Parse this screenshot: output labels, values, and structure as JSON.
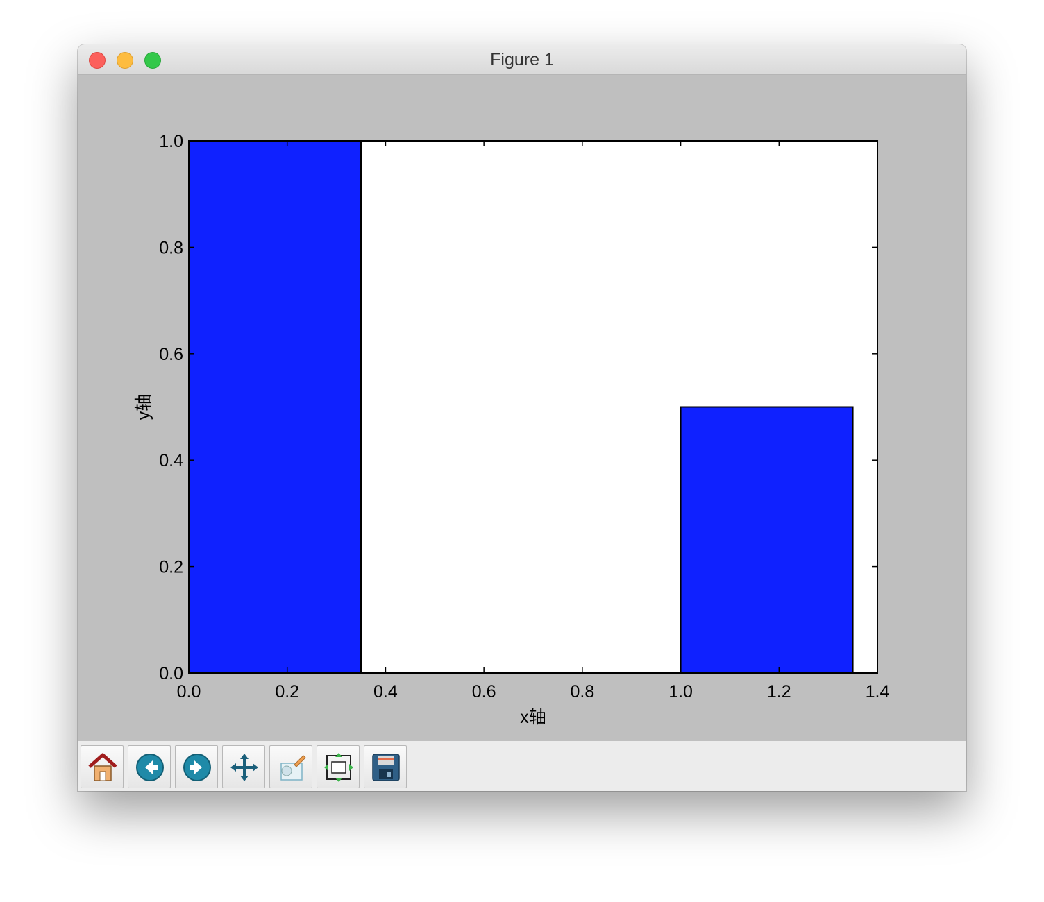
{
  "window": {
    "title": "Figure 1"
  },
  "toolbar": {
    "buttons": [
      {
        "name": "home-button",
        "icon": "home-icon"
      },
      {
        "name": "back-button",
        "icon": "back-arrow-icon"
      },
      {
        "name": "forward-button",
        "icon": "forward-arrow-icon"
      },
      {
        "name": "pan-button",
        "icon": "move-icon"
      },
      {
        "name": "zoom-button",
        "icon": "zoom-rect-icon"
      },
      {
        "name": "subplots-button",
        "icon": "subplots-icon"
      },
      {
        "name": "save-button",
        "icon": "floppy-disk-icon"
      }
    ]
  },
  "chart_data": {
    "type": "bar",
    "bars": [
      {
        "x": 0.0,
        "width": 0.35,
        "value": 1.0
      },
      {
        "x": 1.0,
        "width": 0.35,
        "value": 0.5
      }
    ],
    "color": "#0f21ff",
    "xlabel": "x轴",
    "ylabel": "y轴",
    "xlim": [
      0.0,
      1.4
    ],
    "ylim": [
      0.0,
      1.0
    ],
    "xticks": [
      "0.0",
      "0.2",
      "0.4",
      "0.6",
      "0.8",
      "1.0",
      "1.2",
      "1.4"
    ],
    "yticks": [
      "0.0",
      "0.2",
      "0.4",
      "0.6",
      "0.8",
      "1.0"
    ],
    "grid": false
  }
}
